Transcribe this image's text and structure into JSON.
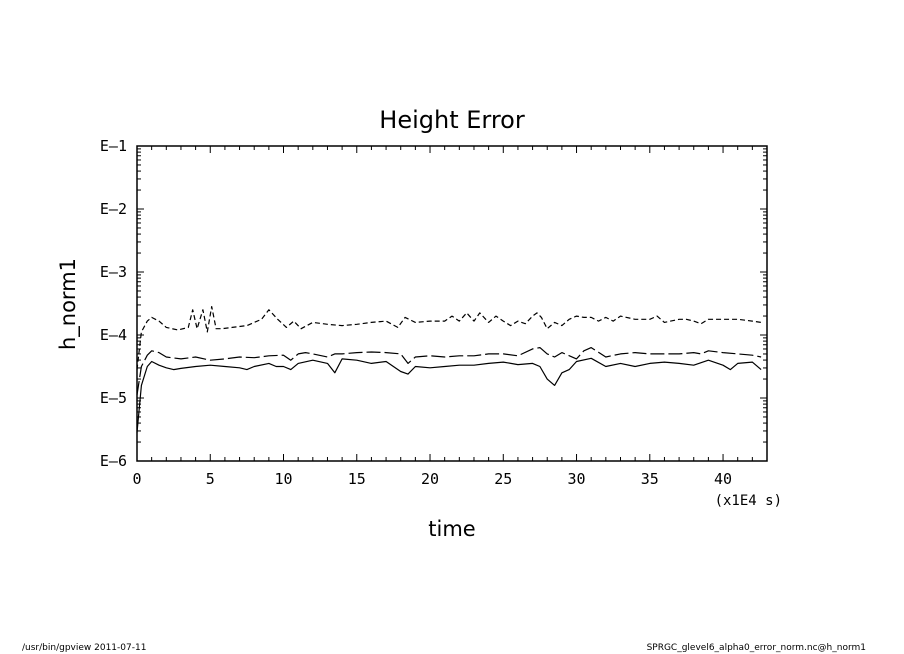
{
  "footer": {
    "left": "/usr/bin/gpview   2011-07-11",
    "right": "SPRGC_glevel6_alpha0_error_norm.nc@h_norm1"
  },
  "chart_data": {
    "type": "line",
    "title": "Height Error",
    "xlabel": "time",
    "ylabel": "h_norm1",
    "x_unit_label": "(x1E4 s)",
    "xlim": [
      0,
      43
    ],
    "ylim": [
      -6,
      -1
    ],
    "yscale": "log",
    "xticks": [
      0,
      5,
      10,
      15,
      20,
      25,
      30,
      35,
      40
    ],
    "xtick_labels": [
      "0",
      "5",
      "10",
      "15",
      "20",
      "25",
      "30",
      "35",
      "40"
    ],
    "yticks": [
      -6,
      -5,
      -4,
      -3,
      -2,
      -1
    ],
    "ytick_labels": [
      "E–6",
      "E–5",
      "E–4",
      "E–3",
      "E–2",
      "E–1"
    ],
    "grid": false,
    "legend": "none",
    "color": "#000000",
    "series": [
      {
        "style": "short-dash",
        "x": [
          0,
          0.3,
          0.7,
          1,
          1.5,
          2,
          2.8,
          3.5,
          3.8,
          4.1,
          4.5,
          4.8,
          5.1,
          5.4,
          5.8,
          6.5,
          7.5,
          8.5,
          9,
          9.6,
          10.2,
          10.7,
          11.2,
          12,
          13,
          14,
          15,
          16,
          17,
          17.8,
          18.3,
          19,
          20,
          21,
          21.5,
          22,
          22.5,
          23,
          23.4,
          24,
          24.5,
          25,
          25.5,
          26,
          26.5,
          27,
          27.3,
          27.6,
          28,
          28.5,
          29,
          29.5,
          30,
          30.5,
          31,
          31.5,
          32,
          32.5,
          33,
          34,
          35,
          35.5,
          36,
          37,
          37.5,
          38,
          38.5,
          39,
          40,
          41,
          42,
          42.6
        ],
        "y": [
          -4.55,
          -3.95,
          -3.78,
          -3.72,
          -3.78,
          -3.88,
          -3.92,
          -3.88,
          -3.6,
          -3.9,
          -3.6,
          -3.95,
          -3.55,
          -3.9,
          -3.9,
          -3.88,
          -3.85,
          -3.75,
          -3.6,
          -3.75,
          -3.88,
          -3.78,
          -3.9,
          -3.8,
          -3.83,
          -3.85,
          -3.83,
          -3.8,
          -3.78,
          -3.88,
          -3.72,
          -3.8,
          -3.78,
          -3.78,
          -3.7,
          -3.78,
          -3.65,
          -3.78,
          -3.65,
          -3.8,
          -3.7,
          -3.78,
          -3.85,
          -3.78,
          -3.82,
          -3.7,
          -3.65,
          -3.72,
          -3.9,
          -3.8,
          -3.85,
          -3.75,
          -3.7,
          -3.72,
          -3.72,
          -3.78,
          -3.72,
          -3.78,
          -3.7,
          -3.75,
          -3.75,
          -3.7,
          -3.8,
          -3.75,
          -3.75,
          -3.78,
          -3.82,
          -3.75,
          -3.75,
          -3.75,
          -3.78,
          -3.8
        ]
      },
      {
        "style": "long-dash",
        "x": [
          0,
          0.3,
          0.7,
          1,
          1.5,
          2,
          3,
          4,
          5,
          6,
          7,
          8,
          9,
          10,
          10.5,
          11,
          11.5,
          12,
          13,
          13.5,
          14,
          15,
          16,
          17,
          18,
          18.5,
          19,
          20,
          21,
          22,
          23,
          24,
          25,
          26,
          27,
          27.5,
          28,
          28.5,
          29,
          30,
          30.5,
          31,
          32,
          33,
          34,
          35,
          36,
          37,
          38,
          38.5,
          39,
          40,
          41,
          42,
          42.6
        ],
        "y": [
          -4.95,
          -4.5,
          -4.32,
          -4.25,
          -4.28,
          -4.35,
          -4.38,
          -4.35,
          -4.4,
          -4.38,
          -4.35,
          -4.36,
          -4.33,
          -4.32,
          -4.4,
          -4.3,
          -4.28,
          -4.3,
          -4.35,
          -4.3,
          -4.3,
          -4.28,
          -4.27,
          -4.28,
          -4.3,
          -4.45,
          -4.35,
          -4.33,
          -4.35,
          -4.33,
          -4.33,
          -4.3,
          -4.3,
          -4.33,
          -4.22,
          -4.2,
          -4.3,
          -4.35,
          -4.28,
          -4.38,
          -4.25,
          -4.2,
          -4.35,
          -4.3,
          -4.28,
          -4.3,
          -4.3,
          -4.3,
          -4.28,
          -4.3,
          -4.25,
          -4.28,
          -4.3,
          -4.32,
          -4.35
        ]
      },
      {
        "style": "solid",
        "x": [
          0,
          0.3,
          0.7,
          1,
          1.5,
          2,
          2.5,
          3,
          4,
          5,
          6,
          7,
          7.5,
          8,
          9,
          9.5,
          10,
          10.5,
          11,
          12,
          13,
          13.5,
          14,
          15,
          16,
          17,
          17.5,
          18,
          18.5,
          19,
          20,
          21,
          22,
          23,
          24,
          25,
          26,
          27,
          27.5,
          28,
          28.5,
          29,
          29.5,
          30,
          31,
          32,
          33,
          34,
          35,
          36,
          37,
          38,
          39,
          40,
          40.5,
          41,
          42,
          42.6
        ],
        "y": [
          -5.55,
          -4.8,
          -4.5,
          -4.42,
          -4.48,
          -4.52,
          -4.55,
          -4.53,
          -4.5,
          -4.48,
          -4.5,
          -4.52,
          -4.55,
          -4.5,
          -4.45,
          -4.5,
          -4.5,
          -4.55,
          -4.45,
          -4.4,
          -4.45,
          -4.6,
          -4.38,
          -4.4,
          -4.45,
          -4.42,
          -4.5,
          -4.58,
          -4.62,
          -4.5,
          -4.52,
          -4.5,
          -4.48,
          -4.48,
          -4.45,
          -4.43,
          -4.47,
          -4.45,
          -4.5,
          -4.7,
          -4.8,
          -4.6,
          -4.55,
          -4.42,
          -4.37,
          -4.5,
          -4.45,
          -4.5,
          -4.45,
          -4.43,
          -4.45,
          -4.48,
          -4.4,
          -4.48,
          -4.55,
          -4.45,
          -4.43,
          -4.55
        ]
      }
    ]
  }
}
